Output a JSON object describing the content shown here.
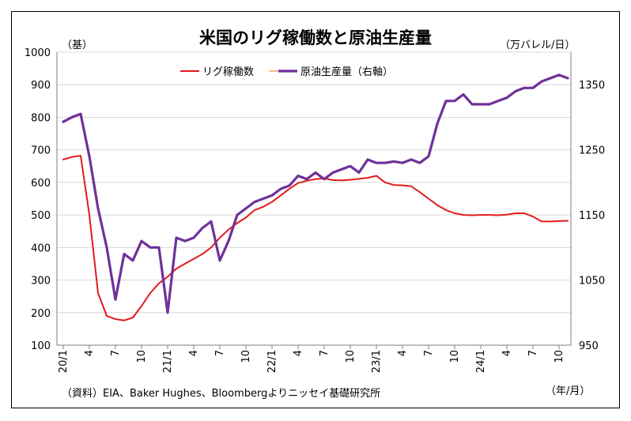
{
  "title": "米国のリグ稼働数と原油生産量",
  "left_axis_unit": "（基）",
  "right_axis_unit": "（万バレル/日）",
  "x_axis_unit": "（年/月）",
  "source": "（資料）EIA、Baker Hughes、Bloombergよりニッセイ基礎研究所",
  "chart_data": {
    "type": "line",
    "title": "米国のリグ稼働数と原油生産量",
    "x_tick_labels": [
      "20/1",
      "4",
      "7",
      "10",
      "21/1",
      "4",
      "7",
      "10",
      "22/1",
      "4",
      "7",
      "10",
      "23/1",
      "4",
      "7",
      "10",
      "24/1",
      "4",
      "7",
      "10"
    ],
    "left_axis": {
      "unit": "（基）",
      "ylim": [
        100,
        1000
      ],
      "ticks": [
        100,
        200,
        300,
        400,
        500,
        600,
        700,
        800,
        900,
        1000
      ]
    },
    "right_axis": {
      "unit": "（万バレル/日）",
      "ylim": [
        950,
        1400
      ],
      "ticks": [
        950,
        1050,
        1150,
        1250,
        1350
      ]
    },
    "legend_position": "top-center",
    "grid": "horizontal",
    "series": [
      {
        "name": "リグ稼働数",
        "axis": "left",
        "color": "#e31a1c",
        "x": [
          0,
          1,
          2,
          3,
          4,
          5,
          6,
          7,
          8,
          9,
          10,
          11,
          12,
          13,
          14,
          15,
          16,
          17,
          18,
          19,
          20,
          21,
          22,
          23,
          24,
          25,
          26,
          27,
          28,
          29,
          30,
          31,
          32,
          33,
          34,
          35,
          36,
          37,
          38,
          39,
          40,
          41,
          42,
          43,
          44,
          45,
          46,
          47,
          48,
          49,
          50,
          51,
          52,
          53,
          54,
          55,
          56,
          57,
          58
        ],
        "values": [
          670,
          678,
          682,
          500,
          260,
          190,
          180,
          176,
          185,
          220,
          260,
          290,
          310,
          335,
          350,
          365,
          380,
          400,
          430,
          455,
          475,
          492,
          515,
          525,
          540,
          560,
          580,
          598,
          605,
          610,
          612,
          607,
          606,
          608,
          611,
          614,
          620,
          600,
          592,
          591,
          588,
          570,
          550,
          530,
          515,
          505,
          500,
          499,
          500,
          500,
          499,
          501,
          505,
          505,
          495,
          480,
          480,
          481,
          482
        ]
      },
      {
        "name": "原油生産量（右軸）",
        "axis": "right",
        "color": "#6f3198",
        "x": [
          0,
          1,
          2,
          3,
          4,
          5,
          6,
          7,
          8,
          9,
          10,
          11,
          12,
          13,
          14,
          15,
          16,
          17,
          18,
          19,
          20,
          21,
          22,
          23,
          24,
          25,
          26,
          27,
          28,
          29,
          30,
          31,
          32,
          33,
          34,
          35,
          36,
          37,
          38,
          39,
          40,
          41,
          42,
          43,
          44,
          45,
          46,
          47,
          48,
          49,
          50,
          51,
          52,
          53,
          54,
          55,
          56,
          57,
          58
        ],
        "values": [
          1293,
          1300,
          1305,
          1240,
          1160,
          1100,
          1020,
          1090,
          1080,
          1110,
          1100,
          1100,
          1000,
          1115,
          1110,
          1115,
          1130,
          1140,
          1080,
          1110,
          1150,
          1160,
          1170,
          1175,
          1180,
          1190,
          1195,
          1210,
          1205,
          1215,
          1205,
          1215,
          1220,
          1225,
          1215,
          1235,
          1230,
          1230,
          1232,
          1230,
          1235,
          1230,
          1240,
          1290,
          1325,
          1325,
          1335,
          1320,
          1320,
          1320,
          1325,
          1330,
          1340,
          1345,
          1345,
          1355,
          1360,
          1365,
          1360
        ]
      }
    ]
  }
}
